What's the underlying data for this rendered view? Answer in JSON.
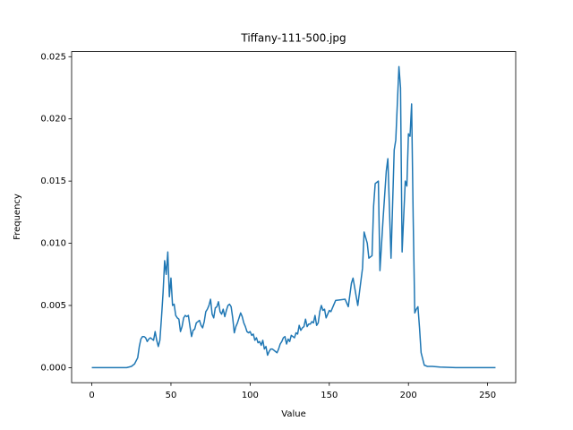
{
  "chart_data": {
    "type": "line",
    "title": "Tiffany-111-500.jpg",
    "x_label": "Value",
    "y_label": "Frequency",
    "color": "#1f77b4",
    "x": [
      0,
      10,
      20,
      22,
      25,
      27,
      29,
      30,
      31,
      32,
      33,
      34,
      35,
      36,
      37,
      38,
      39,
      40,
      41,
      42,
      43,
      44,
      45,
      46,
      47,
      48,
      49,
      50,
      51,
      52,
      53,
      54,
      55,
      56,
      57,
      58,
      59,
      60,
      61,
      62,
      63,
      64,
      65,
      66,
      67,
      68,
      69,
      70,
      71,
      72,
      73,
      74,
      75,
      76,
      77,
      78,
      79,
      80,
      81,
      82,
      83,
      84,
      85,
      86,
      87,
      88,
      89,
      90,
      91,
      92,
      93,
      94,
      95,
      96,
      97,
      98,
      99,
      100,
      101,
      102,
      103,
      104,
      105,
      106,
      107,
      108,
      109,
      110,
      111,
      112,
      113,
      114,
      115,
      116,
      117,
      118,
      119,
      120,
      121,
      122,
      123,
      124,
      125,
      126,
      127,
      128,
      129,
      130,
      131,
      132,
      133,
      134,
      135,
      136,
      137,
      138,
      139,
      140,
      141,
      142,
      143,
      144,
      145,
      146,
      147,
      148,
      149,
      150,
      151,
      154,
      160,
      162,
      164,
      165,
      168,
      171,
      172,
      174,
      175,
      177,
      178,
      179,
      181,
      182,
      184,
      186,
      187,
      189,
      191,
      192,
      194,
      195,
      196,
      198,
      199,
      200,
      201,
      202,
      203,
      204,
      205,
      206,
      207,
      208,
      210,
      212,
      215,
      220,
      230,
      240,
      255
    ],
    "values": [
      0,
      0,
      0,
      0,
      0.0001,
      0.0003,
      0.0008,
      0.0017,
      0.0023,
      0.0025,
      0.0025,
      0.0024,
      0.0021,
      0.0023,
      0.0024,
      0.0023,
      0.0022,
      0.0029,
      0.0022,
      0.0017,
      0.0022,
      0.004,
      0.006,
      0.0086,
      0.0075,
      0.0093,
      0.0057,
      0.0072,
      0.005,
      0.0051,
      0.0042,
      0.004,
      0.0039,
      0.0029,
      0.0033,
      0.004,
      0.0042,
      0.0041,
      0.0042,
      0.0033,
      0.0025,
      0.003,
      0.0031,
      0.0036,
      0.0037,
      0.0038,
      0.0034,
      0.0032,
      0.0037,
      0.0045,
      0.0047,
      0.005,
      0.0055,
      0.0043,
      0.004,
      0.0048,
      0.0049,
      0.0053,
      0.0045,
      0.0043,
      0.0047,
      0.0041,
      0.0046,
      0.005,
      0.0051,
      0.0049,
      0.004,
      0.0028,
      0.0033,
      0.0036,
      0.004,
      0.0044,
      0.0041,
      0.0036,
      0.0033,
      0.0029,
      0.0028,
      0.0029,
      0.0026,
      0.0027,
      0.0022,
      0.0024,
      0.002,
      0.0021,
      0.0018,
      0.0022,
      0.0015,
      0.0017,
      0.001,
      0.0013,
      0.0015,
      0.0015,
      0.0014,
      0.0013,
      0.0012,
      0.0015,
      0.0019,
      0.0021,
      0.0024,
      0.0025,
      0.0019,
      0.0023,
      0.0021,
      0.0026,
      0.0025,
      0.0024,
      0.0028,
      0.0027,
      0.0034,
      0.003,
      0.0032,
      0.0033,
      0.0039,
      0.0033,
      0.0035,
      0.0035,
      0.0037,
      0.0036,
      0.0042,
      0.0034,
      0.0036,
      0.0045,
      0.005,
      0.0046,
      0.0047,
      0.004,
      0.0043,
      0.0046,
      0.0045,
      0.0054,
      0.0055,
      0.0049,
      0.0068,
      0.0072,
      0.005,
      0.008,
      0.0109,
      0.01,
      0.0088,
      0.009,
      0.013,
      0.0148,
      0.015,
      0.0078,
      0.012,
      0.0158,
      0.0168,
      0.0088,
      0.0175,
      0.0183,
      0.0242,
      0.0225,
      0.0093,
      0.015,
      0.0146,
      0.0188,
      0.0186,
      0.0212,
      0.012,
      0.0044,
      0.0047,
      0.0049,
      0.0032,
      0.0012,
      0.0002,
      0.0001,
      0.0001,
      5e-05,
      0,
      0,
      0
    ],
    "xlim": [
      -12.75,
      267.75
    ],
    "xticks": [
      0,
      50,
      100,
      150,
      200,
      250
    ],
    "ylim": [
      -0.00121,
      0.02541
    ],
    "yticks": [
      {
        "value": 0,
        "label": "0.000"
      },
      0.005,
      {
        "value": 0.01,
        "label": "0.010"
      },
      0.015,
      {
        "value": 0.02,
        "label": "0.020"
      },
      0.025
    ]
  }
}
